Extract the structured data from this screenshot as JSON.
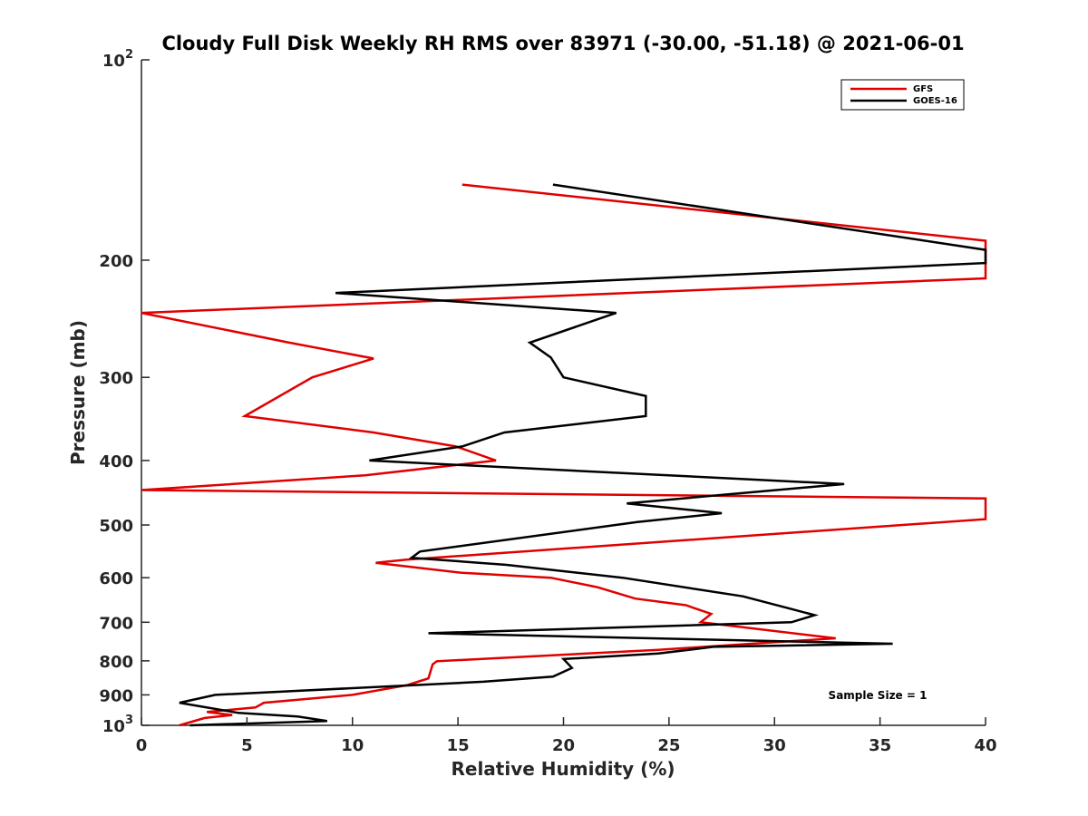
{
  "chart_data": {
    "type": "line",
    "title": "Cloudy Full Disk Weekly RH RMS over 83971 (-30.00, -51.18) @ 2021-06-01",
    "xlabel": "Relative Humidity (%)",
    "ylabel": "Pressure (mb)",
    "xlim": [
      0,
      40
    ],
    "ylim": [
      100,
      1000
    ],
    "y_scale": "log",
    "y_reversed": true,
    "x_ticks": [
      "0",
      "5",
      "10",
      "15",
      "20",
      "25",
      "30",
      "35",
      "40"
    ],
    "y_ticks": [
      {
        "value": 100,
        "base": "10",
        "exp": "2"
      },
      {
        "value": 200,
        "label": "200"
      },
      {
        "value": 300,
        "label": "300"
      },
      {
        "value": 400,
        "label": "400"
      },
      {
        "value": 500,
        "label": "500"
      },
      {
        "value": 600,
        "label": "600"
      },
      {
        "value": 700,
        "label": "700"
      },
      {
        "value": 800,
        "label": "800"
      },
      {
        "value": 900,
        "label": "900"
      },
      {
        "value": 1000,
        "base": "10",
        "exp": "3"
      }
    ],
    "grid": false,
    "legend_position": "top-right",
    "annotation": "Sample Size = 1",
    "series": [
      {
        "name": "GFS",
        "color": "#e00000",
        "points": [
          [
            15.2,
            154
          ],
          [
            40,
            187
          ],
          [
            40,
            213
          ],
          [
            0,
            240
          ],
          [
            7.0,
            266
          ],
          [
            11.0,
            281
          ],
          [
            8.1,
            300
          ],
          [
            4.9,
            343
          ],
          [
            11.0,
            363
          ],
          [
            14.9,
            381
          ],
          [
            16.8,
            400
          ],
          [
            10.6,
            421
          ],
          [
            0,
            443
          ],
          [
            40,
            456
          ],
          [
            40,
            490
          ],
          [
            12.5,
            564
          ],
          [
            11.1,
            570
          ],
          [
            15.2,
            590
          ],
          [
            19.4,
            600
          ],
          [
            21.6,
            620
          ],
          [
            23.4,
            645
          ],
          [
            25.8,
            660
          ],
          [
            27.0,
            680
          ],
          [
            26.5,
            700
          ],
          [
            32.9,
            740
          ],
          [
            24.5,
            770
          ],
          [
            14.0,
            801
          ],
          [
            13.8,
            810
          ],
          [
            13.6,
            850
          ],
          [
            12.6,
            870
          ],
          [
            10.0,
            900
          ],
          [
            5.8,
            925
          ],
          [
            5.4,
            940
          ],
          [
            3.1,
            955
          ],
          [
            4.3,
            965
          ],
          [
            3.0,
            975
          ],
          [
            1.8,
            1000
          ]
        ]
      },
      {
        "name": "GOES-16",
        "color": "#000000",
        "points": [
          [
            19.5,
            154
          ],
          [
            40,
            193
          ],
          [
            40,
            202
          ],
          [
            9.2,
            224
          ],
          [
            22.5,
            240
          ],
          [
            18.4,
            266
          ],
          [
            19.4,
            280
          ],
          [
            20.0,
            300
          ],
          [
            23.9,
            320
          ],
          [
            23.9,
            343
          ],
          [
            17.2,
            363
          ],
          [
            15.2,
            381
          ],
          [
            10.8,
            400
          ],
          [
            33.3,
            434
          ],
          [
            23.0,
            464
          ],
          [
            27.5,
            480
          ],
          [
            23.5,
            495
          ],
          [
            13.2,
            548
          ],
          [
            12.8,
            560
          ],
          [
            17.3,
            574
          ],
          [
            22.8,
            600
          ],
          [
            28.5,
            640
          ],
          [
            30.9,
            670
          ],
          [
            31.9,
            683
          ],
          [
            30.8,
            700
          ],
          [
            13.6,
            727
          ],
          [
            35.6,
            754
          ],
          [
            27.1,
            762
          ],
          [
            24.5,
            780
          ],
          [
            20.0,
            795
          ],
          [
            20.4,
            820
          ],
          [
            19.5,
            845
          ],
          [
            16.2,
            860
          ],
          [
            3.5,
            900
          ],
          [
            1.8,
            925
          ],
          [
            4.6,
            958
          ],
          [
            7.4,
            970
          ],
          [
            8.8,
            985
          ],
          [
            2.3,
            1000
          ]
        ]
      }
    ]
  }
}
